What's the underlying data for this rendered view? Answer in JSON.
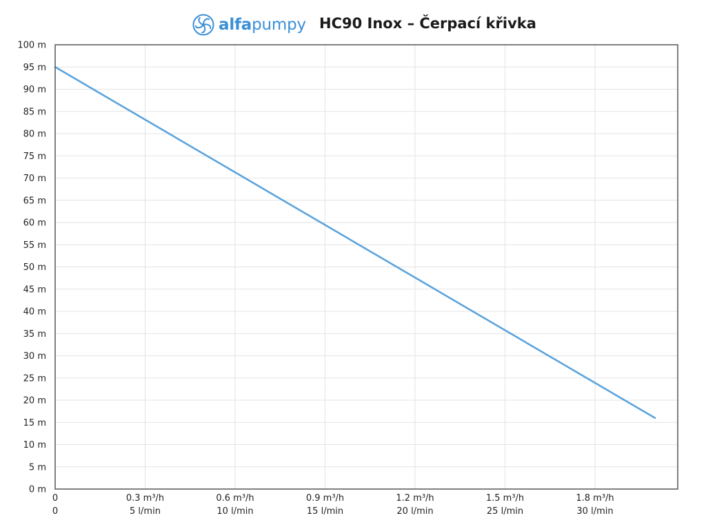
{
  "logo": {
    "text_bold": "alfa",
    "text_regular": "pumpy",
    "icon": "fan-icon"
  },
  "title": "HC90 Inox – Čerpací křivka",
  "colors": {
    "line": "#5ba3dc",
    "logo": "#3a8fd6",
    "grid": "#e3e3e3",
    "frame": "#555555"
  },
  "chart_data": {
    "type": "line",
    "title": "HC90 Inox – Čerpací křivka",
    "xlabel": "",
    "ylabel": "",
    "xlim": [
      0,
      2.0
    ],
    "ylim": [
      0,
      100
    ],
    "grid": true,
    "y_ticks": [
      {
        "value": 0,
        "label": "0 m"
      },
      {
        "value": 5,
        "label": "5 m"
      },
      {
        "value": 10,
        "label": "10 m"
      },
      {
        "value": 15,
        "label": "15 m"
      },
      {
        "value": 20,
        "label": "20 m"
      },
      {
        "value": 25,
        "label": "25 m"
      },
      {
        "value": 30,
        "label": "30 m"
      },
      {
        "value": 35,
        "label": "35 m"
      },
      {
        "value": 40,
        "label": "40 m"
      },
      {
        "value": 45,
        "label": "45 m"
      },
      {
        "value": 50,
        "label": "50 m"
      },
      {
        "value": 55,
        "label": "55 m"
      },
      {
        "value": 60,
        "label": "60 m"
      },
      {
        "value": 65,
        "label": "65 m"
      },
      {
        "value": 70,
        "label": "70 m"
      },
      {
        "value": 75,
        "label": "75 m"
      },
      {
        "value": 80,
        "label": "80 m"
      },
      {
        "value": 85,
        "label": "85 m"
      },
      {
        "value": 90,
        "label": "90 m"
      },
      {
        "value": 95,
        "label": "95 m"
      },
      {
        "value": 100,
        "label": "100 m"
      }
    ],
    "x_ticks": [
      {
        "value": 0,
        "label_m3h": "0",
        "label_lmin": "0"
      },
      {
        "value": 0.3,
        "label_m3h": "0.3 m³/h",
        "label_lmin": "5 l/min"
      },
      {
        "value": 0.6,
        "label_m3h": "0.6 m³/h",
        "label_lmin": "10 l/min"
      },
      {
        "value": 0.9,
        "label_m3h": "0.9 m³/h",
        "label_lmin": "15 l/min"
      },
      {
        "value": 1.2,
        "label_m3h": "1.2 m³/h",
        "label_lmin": "20 l/min"
      },
      {
        "value": 1.5,
        "label_m3h": "1.5 m³/h",
        "label_lmin": "25 l/min"
      },
      {
        "value": 1.8,
        "label_m3h": "1.8 m³/h",
        "label_lmin": "30 l/min"
      }
    ],
    "series": [
      {
        "x": [
          0,
          2.0
        ],
        "y": [
          95,
          16
        ]
      }
    ]
  }
}
